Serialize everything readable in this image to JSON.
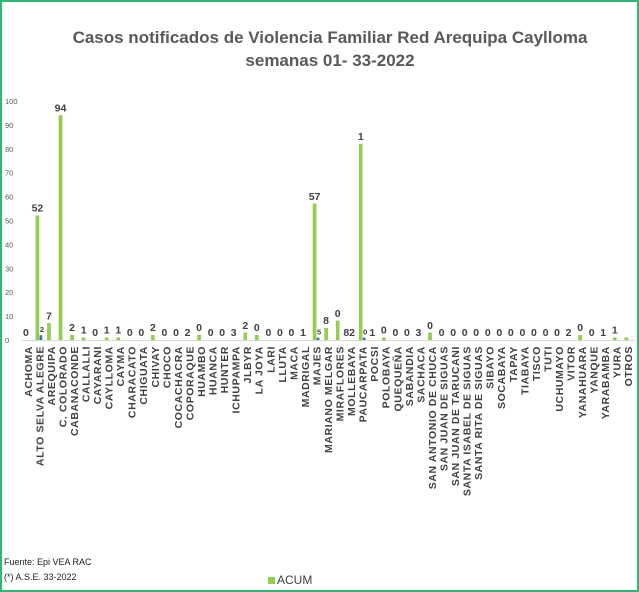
{
  "chart_data": {
    "type": "bar",
    "title": "Casos notificados  de Violencia Familiar Red Arequipa Caylloma",
    "subtitle": "semanas 01- 33-2022",
    "ylim": [
      0,
      100
    ],
    "yticks": [
      0,
      10,
      20,
      30,
      40,
      50,
      60,
      70,
      80,
      90,
      100
    ],
    "grid": false,
    "legend_position": "bottom",
    "categories": [
      "ACHOMA",
      "ALTO SELVA ALEGRE",
      "AREQUIPA",
      "C. COLORADO",
      "CABANACONDE",
      "CALLALLI",
      "CAYARANI",
      "CAYLLOMA",
      "CAYMA",
      "CHARACATO",
      "CHIGUATA",
      "CHIVAY",
      "CHOCO",
      "COCACHACRA",
      "COPORAQUE",
      "HUAMBO",
      "HUANCA",
      "HUNTER",
      "ICHUPAMPA",
      "JLBYR",
      "LA JOYA",
      "LARI",
      "LLUTA",
      "MACA",
      "MADRIGAL",
      "MAJES",
      "MARIANO MELGAR",
      "MIRAFLORES",
      "MOLLEBAYA",
      "PAUCARPATA",
      "POCSI",
      "POLOBAYA",
      "QUEQUEÑA",
      "SABANDIA",
      "SACHACA",
      "SAN ANTONIO DE CHUCA",
      "SAN JUAN DE SIGUAS",
      "SAN JUAN DE TARUCANI",
      "SANTA ISABEL DE SIGUAS",
      "SANTA RITA DE SIGUAS",
      "SIBAYO",
      "SOCABAYA",
      "TAPAY",
      "TIABAYA",
      "TISCO",
      "TUTI",
      "UCHUMAYO",
      "VITOR",
      "YANAHUARA",
      "YANQUE",
      "YARABAMBA",
      "YURA",
      "OTROS"
    ],
    "series": [
      {
        "name": "ACUM",
        "color": "#92d050",
        "values": [
          0,
          52,
          7,
          94,
          2,
          1,
          0,
          1,
          1,
          0,
          0,
          2,
          0,
          0,
          0,
          2,
          0,
          0,
          0,
          3,
          2,
          0,
          0,
          0,
          0,
          57,
          5,
          8,
          0,
          82,
          0,
          1,
          0,
          0,
          0,
          3,
          0,
          0,
          0,
          0,
          0,
          0,
          0,
          0,
          0,
          0,
          0,
          0,
          2,
          0,
          0,
          1,
          1
        ]
      },
      {
        "name": "",
        "color": "#2e75b6",
        "values": [
          0,
          2,
          0,
          0,
          0,
          0,
          0,
          0,
          0,
          0,
          0,
          0,
          0,
          0,
          0,
          0,
          0,
          0,
          0,
          0,
          0,
          0,
          0,
          0,
          0,
          1,
          0,
          0,
          0,
          1,
          0,
          0,
          0,
          0,
          0,
          0,
          0,
          0,
          0,
          0,
          0,
          0,
          0,
          0,
          0,
          0,
          0,
          0,
          0,
          0,
          0,
          0,
          0
        ]
      }
    ],
    "data_labels": [
      "0",
      "52",
      "2",
      "7",
      "94",
      "2",
      "1",
      "0",
      "1",
      "1",
      "0",
      "0",
      "2",
      "0",
      "0",
      "2",
      "0",
      "0",
      "0",
      "3",
      "2",
      "0",
      "0",
      "0",
      "0",
      "1",
      "57",
      "5",
      "8",
      "0",
      "82",
      "1",
      "0",
      "1",
      "0",
      "0",
      "0",
      "3",
      "0",
      "0",
      "0",
      "0",
      "0",
      "0",
      "0",
      "0",
      "0",
      "0",
      "0",
      "0",
      "2",
      "0",
      "0",
      "1",
      "1"
    ],
    "legend": [
      "ACUM"
    ]
  },
  "footnotes": {
    "source": "Fuente:  Epi VEA RAC",
    "note": "(*) A.S.E. 33-2022"
  }
}
